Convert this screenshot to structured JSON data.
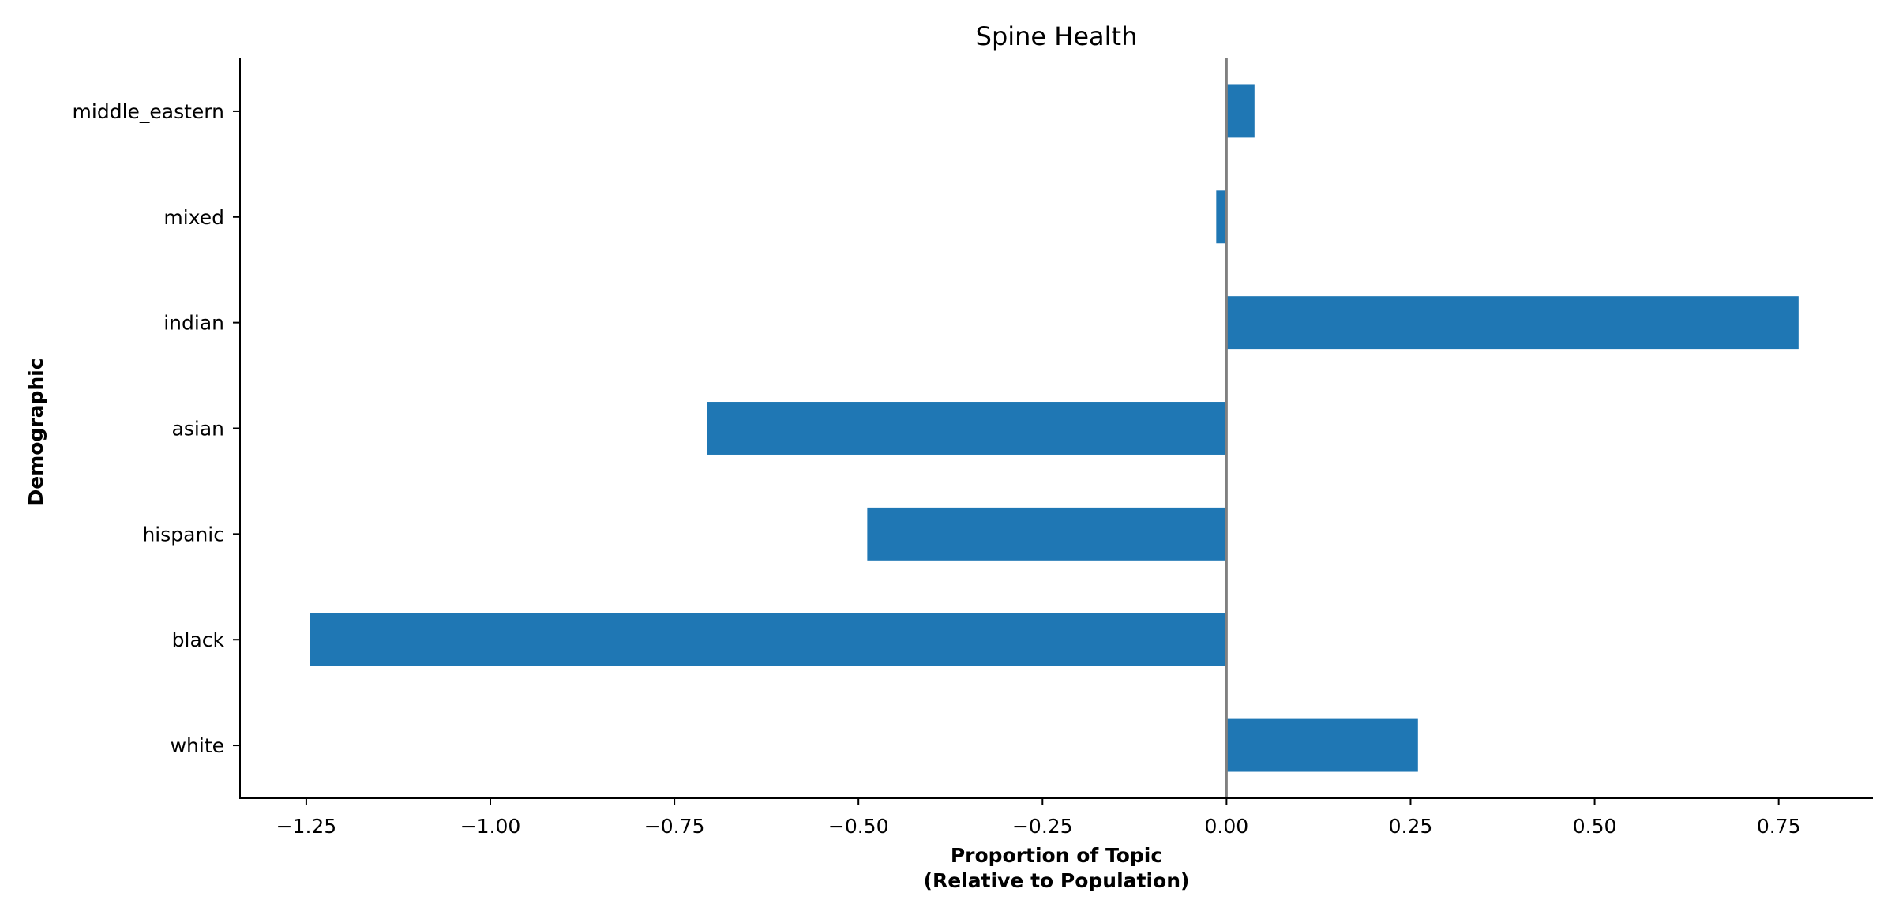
{
  "chart_data": {
    "type": "bar",
    "orientation": "horizontal",
    "title": "Spine Health",
    "xlabel": [
      "Proportion of Topic",
      "(Relative to Population)"
    ],
    "ylabel": "Demographic",
    "categories": [
      "white",
      "black",
      "hispanic",
      "asian",
      "indian",
      "mixed",
      "middle_eastern"
    ],
    "values": [
      0.26,
      -1.245,
      -0.488,
      -0.706,
      0.777,
      -0.014,
      0.038
    ],
    "xlim": [
      -1.34,
      0.878
    ],
    "xticks": [
      -1.25,
      -1.0,
      -0.75,
      -0.5,
      -0.25,
      0.0,
      0.25,
      0.5,
      0.75
    ],
    "xtick_labels": [
      "−1.25",
      "−1.00",
      "−0.75",
      "−0.50",
      "−0.25",
      "0.00",
      "0.25",
      "0.50",
      "0.75"
    ],
    "bar_color": "#1f77b4",
    "zero_line_color": "#808080",
    "grid": false,
    "legend": "none"
  }
}
